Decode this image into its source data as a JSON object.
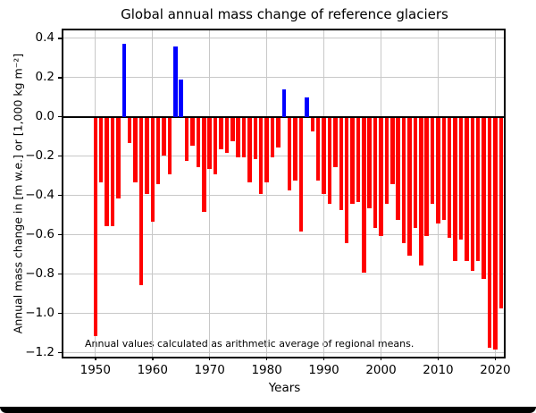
{
  "chart_data": {
    "type": "bar",
    "title": "Global annual mass change of reference glaciers",
    "xlabel": "Years",
    "ylabel": "Annual mass change in [m w.e.] or [1,000 kg m⁻²]",
    "annotation": "Annual values calculated as arithmetic average of regional means.",
    "legend": "none",
    "grid": "on",
    "xlim": [
      1944.4,
      2021.5
    ],
    "ylim": [
      -1.22,
      0.44
    ],
    "xticks": [
      1950,
      1960,
      1970,
      1980,
      1990,
      2000,
      2010,
      2020
    ],
    "yticks": [
      0.4,
      0.2,
      0.0,
      -0.2,
      -0.4,
      -0.6,
      -0.8,
      -1.0,
      -1.2
    ],
    "bar_width_years": 0.7,
    "x": [
      1950,
      1951,
      1952,
      1953,
      1954,
      1955,
      1956,
      1957,
      1958,
      1959,
      1960,
      1961,
      1962,
      1963,
      1964,
      1965,
      1966,
      1967,
      1968,
      1969,
      1970,
      1971,
      1972,
      1973,
      1974,
      1975,
      1976,
      1977,
      1978,
      1979,
      1980,
      1981,
      1982,
      1983,
      1984,
      1985,
      1986,
      1987,
      1988,
      1989,
      1990,
      1991,
      1992,
      1993,
      1994,
      1995,
      1996,
      1997,
      1998,
      1999,
      2000,
      2001,
      2002,
      2003,
      2004,
      2005,
      2006,
      2007,
      2008,
      2009,
      2010,
      2011,
      2012,
      2013,
      2014,
      2015,
      2016,
      2017,
      2018,
      2019,
      2020,
      2021
    ],
    "values": [
      -1.11,
      -0.33,
      -0.55,
      -0.55,
      -0.41,
      0.37,
      -0.13,
      -0.33,
      -0.85,
      -0.39,
      -0.53,
      -0.34,
      -0.19,
      -0.29,
      0.36,
      0.19,
      -0.22,
      -0.14,
      -0.25,
      -0.48,
      -0.26,
      -0.29,
      -0.16,
      -0.18,
      -0.12,
      -0.2,
      -0.2,
      -0.33,
      -0.21,
      -0.39,
      -0.33,
      -0.2,
      -0.15,
      0.14,
      -0.37,
      -0.32,
      -0.58,
      0.1,
      -0.07,
      -0.32,
      -0.39,
      -0.44,
      -0.25,
      -0.47,
      -0.64,
      -0.44,
      -0.43,
      -0.79,
      -0.46,
      -0.56,
      -0.6,
      -0.44,
      -0.34,
      -0.52,
      -0.64,
      -0.7,
      -0.56,
      -0.75,
      -0.6,
      -0.44,
      -0.54,
      -0.52,
      -0.61,
      -0.73,
      -0.62,
      -0.73,
      -0.78,
      -0.73,
      -0.82,
      -1.17,
      -1.18,
      -0.97
    ],
    "colors": {
      "positive": "#0000ff",
      "negative": "#ff0000",
      "grid": "#c8c8c8",
      "axis": "#000000",
      "background": "#ffffff"
    }
  }
}
